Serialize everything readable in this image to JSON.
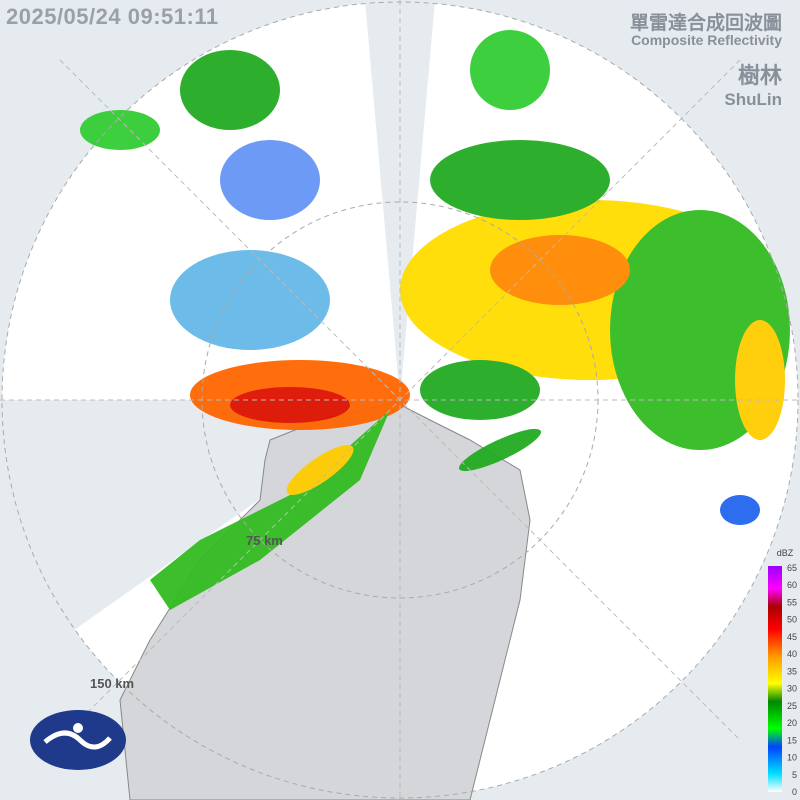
{
  "header": {
    "timestamp": "2025/05/24 09:51:11",
    "title_zh": "單雷達合成回波圖",
    "title_en": "Composite Reflectivity"
  },
  "station": {
    "name_zh": "樹林",
    "name_en": "ShuLin"
  },
  "range_labels": [
    "75 km",
    "150 km"
  ],
  "legend": {
    "unit": "dBZ",
    "ticks": [
      "0",
      "5",
      "10",
      "15",
      "20",
      "25",
      "30",
      "35",
      "40",
      "45",
      "50",
      "55",
      "60",
      "65"
    ]
  }
}
